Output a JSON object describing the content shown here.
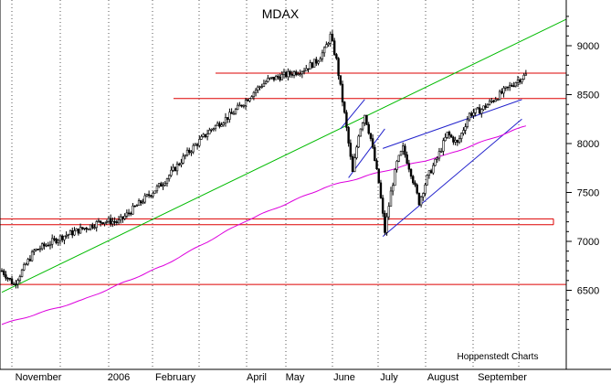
{
  "chart_data": {
    "type": "candlestick",
    "title": "MDAX",
    "credit": "Hoppenstedt Charts",
    "xlabel": "",
    "ylabel": "",
    "x_tick_labels": [
      "November",
      "2006",
      "February",
      "April",
      "May",
      "June",
      "July",
      "August",
      "September"
    ],
    "y_ticks": [
      6500,
      7000,
      7500,
      8000,
      8500,
      9000
    ],
    "ylim": [
      5950,
      9400
    ],
    "y_axis_position": "right",
    "grid": true,
    "grid_style": "dotted vertical",
    "session_count": 232,
    "price_path": [
      [
        0,
        6700
      ],
      [
        6,
        6560
      ],
      [
        16,
        6900
      ],
      [
        30,
        7050
      ],
      [
        44,
        7160
      ],
      [
        50,
        7210
      ],
      [
        58,
        7200
      ],
      [
        70,
        7420
      ],
      [
        80,
        7600
      ],
      [
        92,
        7900
      ],
      [
        104,
        8150
      ],
      [
        114,
        8300
      ],
      [
        120,
        8420
      ],
      [
        126,
        8550
      ],
      [
        132,
        8650
      ],
      [
        144,
        8720
      ],
      [
        150,
        8760
      ],
      [
        156,
        8840
      ],
      [
        160,
        8950
      ],
      [
        163,
        9100
      ],
      [
        166,
        8850
      ],
      [
        170,
        8300
      ],
      [
        174,
        7700
      ],
      [
        177,
        8100
      ],
      [
        180,
        8300
      ],
      [
        183,
        8050
      ],
      [
        187,
        7600
      ],
      [
        190,
        7100
      ],
      [
        193,
        7500
      ],
      [
        196,
        7800
      ],
      [
        199,
        7950
      ],
      [
        203,
        7700
      ],
      [
        207,
        7400
      ],
      [
        211,
        7650
      ],
      [
        216,
        7850
      ],
      [
        221,
        8100
      ],
      [
        226,
        8000
      ],
      [
        232,
        8300
      ],
      [
        238,
        8350
      ],
      [
        244,
        8450
      ],
      [
        250,
        8550
      ],
      [
        256,
        8650
      ],
      [
        260,
        8700
      ]
    ],
    "horizontal_levels": [
      {
        "value": 8720,
        "color": "#dd0000"
      },
      {
        "value": 8460,
        "color": "#dd0000"
      },
      {
        "value": 7230,
        "color": "#dd0000"
      },
      {
        "value": 7170,
        "color": "#dd0000"
      },
      {
        "value": 6560,
        "color": "#dd0000"
      }
    ],
    "moving_average": {
      "color": "#dd00dd",
      "points": [
        [
          0,
          6150
        ],
        [
          40,
          6400
        ],
        [
          80,
          6750
        ],
        [
          120,
          7200
        ],
        [
          160,
          7550
        ],
        [
          190,
          7720
        ],
        [
          220,
          7880
        ],
        [
          260,
          8180
        ]
      ]
    },
    "trend_lines": [
      {
        "color": "#00bb00",
        "from": [
          0,
          6480
        ],
        "to": [
          280,
          9270
        ]
      },
      {
        "color": "#2222cc",
        "from": [
          189,
          7050
        ],
        "to": [
          258,
          8250
        ]
      },
      {
        "color": "#2222cc",
        "from": [
          189,
          7950
        ],
        "to": [
          258,
          8450
        ]
      },
      {
        "color": "#2222cc",
        "from": [
          172,
          7650
        ],
        "to": [
          190,
          8150
        ]
      },
      {
        "color": "#2222cc",
        "from": [
          168,
          8150
        ],
        "to": [
          180,
          8450
        ]
      }
    ],
    "colors": {
      "background": "#ffffff",
      "candle": "#000000",
      "level": "#dd0000",
      "moving_average": "#dd00dd",
      "uptrend": "#00bb00",
      "channel": "#2222cc"
    }
  }
}
